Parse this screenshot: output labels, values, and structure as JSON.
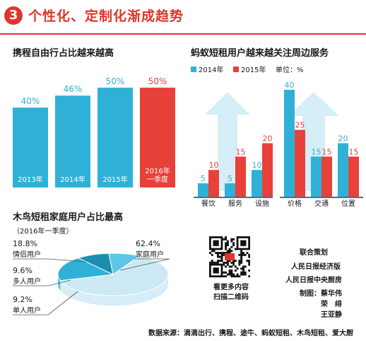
{
  "header": {
    "number": "3",
    "title": "个性化、定制化渐成趋势"
  },
  "chart_data": [
    {
      "type": "bar",
      "title": "携程自由行占比越来越高",
      "categories": [
        "2013年",
        "2014年",
        "2015年",
        "2016年\n一季度"
      ],
      "values": [
        40,
        46,
        50,
        50
      ],
      "value_labels": [
        "40%",
        "46%",
        "50%",
        "50%"
      ],
      "colors": [
        "#2fb1d7",
        "#2fb1d7",
        "#2fb1d7",
        "#e8413a"
      ],
      "ylim": [
        0,
        62
      ],
      "grid": false
    },
    {
      "type": "bar",
      "title": "蚂蚁短租用户越来越关注周边服务",
      "unit": "单位：%",
      "categories": [
        "餐饮",
        "服务",
        "设施",
        "价格",
        "交通",
        "位置"
      ],
      "series": [
        {
          "name": "2014年",
          "color": "#2fb1d7",
          "values": [
            5,
            5,
            10,
            40,
            15,
            20
          ]
        },
        {
          "name": "2015年",
          "color": "#e8413a",
          "values": [
            10,
            15,
            20,
            25,
            15,
            15
          ]
        }
      ],
      "ylim": [
        0,
        45
      ],
      "legend": "top-left",
      "grid": false
    },
    {
      "type": "pie",
      "title": "木鸟短租家庭用户占比最高",
      "subtitle": "（2016年一季度）",
      "slices": [
        {
          "name": "家庭用户",
          "value": 62.4,
          "label": "62.4%",
          "color": "#cde9f6"
        },
        {
          "name": "情侣用户",
          "value": 18.8,
          "label": "18.8%",
          "color": "#2fb1d7"
        },
        {
          "name": "多人用户",
          "value": 9.6,
          "label": "9.6%",
          "color": "#1a8fb2"
        },
        {
          "name": "单人用户",
          "value": 9.2,
          "label": "9.2%",
          "color": "#5cc6e6"
        }
      ]
    }
  ],
  "qr": {
    "caption_line1": "看更多内容",
    "caption_line2": "扫描二维码"
  },
  "credits": {
    "line1": "联合策划",
    "line2": "人民日报经济版",
    "line3": "人民日报中央厨房",
    "line4": "制图：蔡华伟",
    "line5": "荣　绯",
    "line6": "王亚静"
  },
  "footer": {
    "source": "数据来源：滴滴出行、携程、途牛、蚂蚁短租、木鸟短租、爱大厨"
  }
}
